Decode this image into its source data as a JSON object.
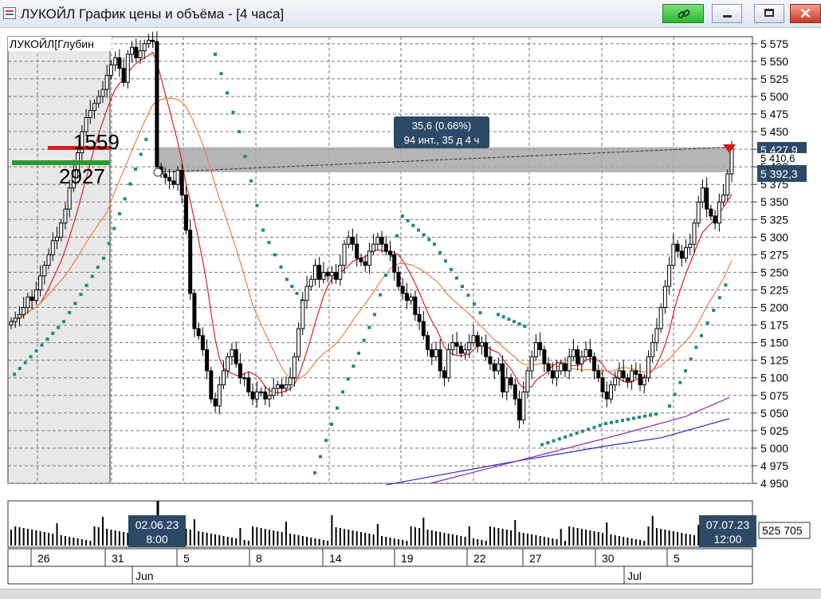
{
  "window": {
    "title": "ЛУКОЙЛ График цены и объёма - [4 часа]",
    "link_icon": "link-icon",
    "accent_green": "#29b92c"
  },
  "chart": {
    "instrument_label": "ЛУКОЙЛ[Глубин",
    "depth_ask_volume": "1559",
    "depth_bid_volume": "2927",
    "measure_line1": "35,6 (0.66%)",
    "measure_line2": "94 инт., 35 д 4 ч",
    "price_label_high": "5 427,9",
    "price_label_mid": "5 410,6",
    "price_label_low": "5 392,3",
    "volume_label": "525 705",
    "cursor_left_date": "02.06.23",
    "cursor_left_time": "8:00",
    "cursor_right_date": "07.07.23",
    "cursor_right_time": "12:00",
    "day_labels": [
      "26",
      "31",
      "5",
      "8",
      "14",
      "19",
      "22",
      "27",
      "30",
      "5"
    ],
    "month_labels": [
      "Jun",
      "Jul"
    ],
    "colors": {
      "candle": "#000000",
      "sar": "#1f8a7a",
      "ma_red": "#e02020",
      "ma_orange": "#f08040",
      "ma_blue": "#2a2ab8",
      "ma_purple": "#8a2aa8",
      "selection": "#a8a8a8",
      "label_bg": "#2c4a66"
    }
  },
  "chart_data": {
    "type": "candlestick",
    "ylim": [
      4950,
      5585
    ],
    "yticks": [
      4950,
      4975,
      5000,
      5025,
      5050,
      5075,
      5100,
      5125,
      5150,
      5175,
      5200,
      5225,
      5250,
      5275,
      5300,
      5325,
      5350,
      5375,
      5400,
      5425,
      5450,
      5475,
      5500,
      5525,
      5550,
      5575
    ],
    "ytick_labels": [
      "4 950",
      "4 975",
      "5 000",
      "5 025",
      "5 050",
      "5 075",
      "5 100",
      "5 125",
      "5 150",
      "5 175",
      "5 200",
      "5 225",
      "5 250",
      "5 275",
      "5 300",
      "5 325",
      "5 350",
      "5 375",
      "5 400",
      "5 425",
      "5 450",
      "5 475",
      "5 500",
      "5 525",
      "5 550",
      "5 575"
    ],
    "x_ticks": [
      "26",
      "31",
      "5",
      "8",
      "14",
      "19",
      "22",
      "27",
      "30",
      "5"
    ],
    "x_months": [
      "Jun",
      "Jul"
    ],
    "measure_start": 5392.3,
    "measure_end": 5427.9,
    "measure_change": "35,6 (0.66%)",
    "closes": [
      5180,
      5185,
      5190,
      5200,
      5215,
      5210,
      5225,
      5245,
      5260,
      5275,
      5295,
      5300,
      5320,
      5340,
      5370,
      5395,
      5420,
      5450,
      5470,
      5480,
      5490,
      5500,
      5510,
      5530,
      5545,
      5555,
      5540,
      5520,
      5560,
      5570,
      5555,
      5565,
      5575,
      5580,
      5578,
      5400,
      5390,
      5385,
      5380,
      5375,
      5395,
      5360,
      5310,
      5220,
      5170,
      5160,
      5140,
      5110,
      5070,
      5060,
      5090,
      5110,
      5130,
      5140,
      5120,
      5100,
      5100,
      5080,
      5070,
      5080,
      5080,
      5070,
      5075,
      5085,
      5090,
      5085,
      5090,
      5100,
      5130,
      5170,
      5210,
      5230,
      5240,
      5260,
      5240,
      5250,
      5245,
      5250,
      5240,
      5260,
      5290,
      5300,
      5290,
      5270,
      5265,
      5260,
      5280,
      5290,
      5300,
      5290,
      5280,
      5275,
      5250,
      5230,
      5220,
      5210,
      5215,
      5190,
      5180,
      5160,
      5140,
      5130,
      5140,
      5110,
      5100,
      5140,
      5150,
      5145,
      5135,
      5140,
      5150,
      5160,
      5145,
      5150,
      5130,
      5120,
      5110,
      5120,
      5080,
      5100,
      5090,
      5070,
      5040,
      5080,
      5110,
      5130,
      5150,
      5140,
      5120,
      5110,
      5100,
      5110,
      5120,
      5110,
      5130,
      5140,
      5120,
      5130,
      5140,
      5130,
      5110,
      5100,
      5080,
      5070,
      5090,
      5100,
      5110,
      5100,
      5095,
      5110,
      5105,
      5090,
      5100,
      5130,
      5150,
      5170,
      5200,
      5230,
      5260,
      5290,
      5280,
      5270,
      5285,
      5290,
      5320,
      5350,
      5370,
      5340,
      5330,
      5320,
      5350,
      5360,
      5390,
      5427.9
    ]
  }
}
